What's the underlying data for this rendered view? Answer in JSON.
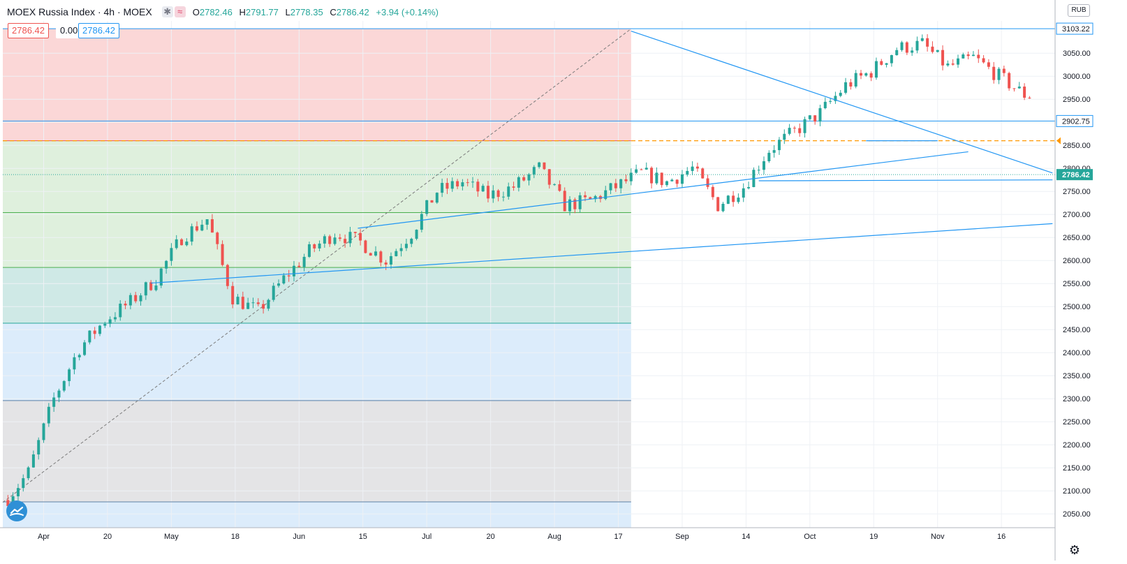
{
  "header": {
    "symbol": "MOEX Russia Index · 4h · MOEX",
    "ohlc": {
      "o_label": "O",
      "o": "2782.46",
      "h_label": "H",
      "h": "2791.77",
      "l_label": "L",
      "l": "2778.35",
      "c_label": "C",
      "c": "2786.42",
      "change": "+3.94 (+0.14%)"
    },
    "sell_price": "2786.42",
    "spread": "0.00",
    "buy_price": "2786.42",
    "currency": "RUB"
  },
  "icons": {
    "compare": "asterisk-icon",
    "indicators": "wave-icon",
    "logo": "tradingview-logo-icon",
    "settings": "gear-icon"
  },
  "colors": {
    "up": "#26a69a",
    "down": "#ef5350",
    "trendline": "#2196f3",
    "grid": "#eef1f5",
    "zone_red": "#fbd7d7",
    "zone_green": "#dff0dd",
    "zone_teal": "#cfe9e6",
    "zone_blue": "#dcecfb",
    "zone_gray": "#e4e4e6",
    "order_line": "#ff9800"
  },
  "chart_data": {
    "type": "candlestick",
    "title": "MOEX Russia Index · 4h · MOEX",
    "ylim": [
      2020,
      3120
    ],
    "grid": true,
    "x_ticks": [
      "Apr",
      "20",
      "May",
      "18",
      "Jun",
      "15",
      "Jul",
      "20",
      "Aug",
      "17",
      "Sep",
      "14",
      "Oct",
      "19",
      "Nov",
      "16"
    ],
    "x_tick_pos": [
      1,
      3.5,
      6,
      8.5,
      11,
      13.5,
      16,
      18.5,
      21,
      23.5,
      26,
      28.5,
      31,
      33.5,
      36,
      38.5
    ],
    "y_ticks": [
      2050,
      2100,
      2150,
      2200,
      2250,
      2300,
      2350,
      2400,
      2450,
      2500,
      2550,
      2600,
      2650,
      2700,
      2750,
      2800,
      2850,
      2900,
      2950,
      3000,
      3050
    ],
    "axis_labels": [
      {
        "value": 3103.22,
        "text": "3103.22",
        "style": "outline"
      },
      {
        "value": 2902.75,
        "text": "2902.75",
        "style": "outline"
      },
      {
        "value": 2786.42,
        "text": "2786.42",
        "style": "last"
      }
    ],
    "weekly_closes": [
      2140,
      2300,
      2410,
      2470,
      2510,
      2560,
      2650,
      2690,
      2520,
      2490,
      2560,
      2620,
      2660,
      2640,
      2600,
      2660,
      2750,
      2770,
      2740,
      2760,
      2800,
      2720,
      2730,
      2760,
      2790,
      2770,
      2800,
      2720,
      2760,
      2840,
      2880,
      2920,
      2980,
      3010,
      3060,
      3070,
      3020,
      3040,
      3000,
      2960,
      2950,
      2930,
      2890,
      2930,
      2960,
      2900,
      2920,
      2880,
      2850,
      2830,
      2790,
      2800,
      2690,
      2700,
      2786
    ],
    "last_price": 2786.42,
    "fib_zones": [
      {
        "from": 3103.22,
        "to": 2860,
        "fill": "zone_red"
      },
      {
        "from": 2860,
        "to": 2704,
        "fill": "zone_green"
      },
      {
        "from": 2704,
        "to": 2585,
        "fill": "zone_green"
      },
      {
        "from": 2585,
        "to": 2464,
        "fill": "zone_teal"
      },
      {
        "from": 2464,
        "to": 2296,
        "fill": "zone_blue"
      },
      {
        "from": 2296,
        "to": 2076,
        "fill": "zone_gray"
      },
      {
        "from": 2076,
        "to": 2020,
        "fill": "zone_blue"
      }
    ],
    "fib_levels": [
      2860,
      2704,
      2585,
      2464,
      2296,
      2076
    ],
    "order_line": 2860,
    "horizontal_lines": [
      3103.22,
      2902.75
    ],
    "trendlines": [
      {
        "x1": 24.0,
        "y1": 3098,
        "x2": 40.5,
        "y2": 2790
      },
      {
        "x1": 13.3,
        "y1": 2670,
        "x2": 37.2,
        "y2": 2836
      },
      {
        "x1": 5.2,
        "y1": 2551,
        "x2": 40.5,
        "y2": 2680
      },
      {
        "x1": 29.0,
        "y1": 2773,
        "x2": 40.5,
        "y2": 2775
      },
      {
        "x1": 33.2,
        "y1": 2860,
        "x2": 36.0,
        "y2": 2860
      }
    ],
    "diagonal": {
      "x1": -0.6,
      "y1": 2075,
      "x2": 24.0,
      "y2": 3103
    }
  }
}
